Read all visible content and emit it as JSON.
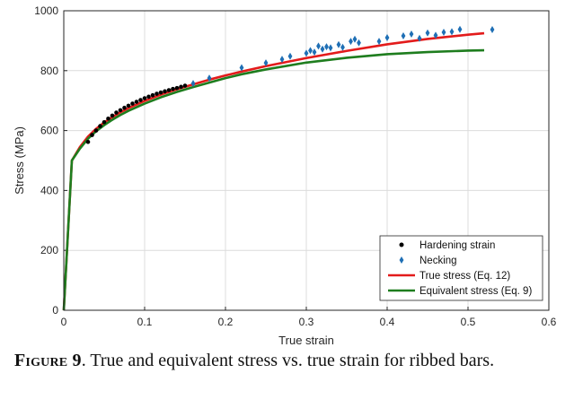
{
  "chart_data": {
    "type": "scatter",
    "xlabel": "True strain",
    "ylabel": "Stress (MPa)",
    "xlim": [
      0,
      0.6
    ],
    "ylim": [
      0,
      1000
    ],
    "xticks": [
      "0",
      "0.1",
      "0.2",
      "0.3",
      "0.4",
      "0.5",
      "0.6"
    ],
    "yticks": [
      "0",
      "200",
      "400",
      "600",
      "800",
      "1000"
    ],
    "grid": true,
    "legend_position": "bottom-right",
    "series": [
      {
        "name": "Hardening strain",
        "kind": "markers",
        "marker": "dot",
        "color": "#000000",
        "x": [
          0.03,
          0.035,
          0.04,
          0.045,
          0.05,
          0.055,
          0.06,
          0.065,
          0.07,
          0.075,
          0.08,
          0.085,
          0.09,
          0.095,
          0.1,
          0.105,
          0.11,
          0.115,
          0.12,
          0.125,
          0.13,
          0.135,
          0.14,
          0.145,
          0.15
        ],
        "y": [
          562,
          585,
          600,
          615,
          628,
          640,
          650,
          660,
          668,
          676,
          683,
          690,
          696,
          702,
          708,
          713,
          718,
          723,
          727,
          731,
          735,
          739,
          742,
          746,
          750
        ]
      },
      {
        "name": "Necking",
        "kind": "markers",
        "marker": "diamond",
        "color": "#1f6fb5",
        "x": [
          0.16,
          0.18,
          0.22,
          0.25,
          0.27,
          0.28,
          0.3,
          0.305,
          0.31,
          0.315,
          0.32,
          0.325,
          0.33,
          0.34,
          0.345,
          0.355,
          0.36,
          0.365,
          0.39,
          0.4,
          0.42,
          0.43,
          0.44,
          0.45,
          0.46,
          0.47,
          0.48,
          0.49,
          0.53
        ],
        "y": [
          757,
          775,
          810,
          826,
          838,
          848,
          858,
          867,
          862,
          882,
          872,
          880,
          876,
          887,
          878,
          898,
          905,
          893,
          898,
          910,
          916,
          922,
          908,
          926,
          918,
          928,
          930,
          938,
          937
        ]
      },
      {
        "name": "True stress (Eq. 12)",
        "kind": "line",
        "color": "#e31b1b",
        "x": [
          0,
          0.01,
          0.02,
          0.03,
          0.04,
          0.05,
          0.06,
          0.07,
          0.08,
          0.1,
          0.12,
          0.14,
          0.16,
          0.18,
          0.2,
          0.22,
          0.25,
          0.3,
          0.35,
          0.4,
          0.45,
          0.5,
          0.52
        ],
        "y": [
          0,
          500,
          545,
          580,
          606,
          627,
          645,
          661,
          675,
          699,
          720,
          738,
          754,
          770,
          784,
          797,
          815,
          842,
          866,
          888,
          906,
          920,
          925
        ]
      },
      {
        "name": "Equivalent stress (Eq. 9)",
        "kind": "line",
        "color": "#1e7d1e",
        "x": [
          0,
          0.01,
          0.02,
          0.03,
          0.04,
          0.05,
          0.06,
          0.07,
          0.08,
          0.1,
          0.12,
          0.14,
          0.16,
          0.18,
          0.2,
          0.22,
          0.25,
          0.3,
          0.35,
          0.4,
          0.45,
          0.5,
          0.52
        ],
        "y": [
          0,
          500,
          540,
          573,
          598,
          618,
          636,
          652,
          666,
          690,
          711,
          729,
          745,
          760,
          775,
          788,
          804,
          827,
          843,
          855,
          862,
          867,
          868
        ]
      }
    ]
  },
  "caption": {
    "label": "Figure 9",
    "text": ". True and equivalent stress vs. true strain for ribbed bars."
  }
}
